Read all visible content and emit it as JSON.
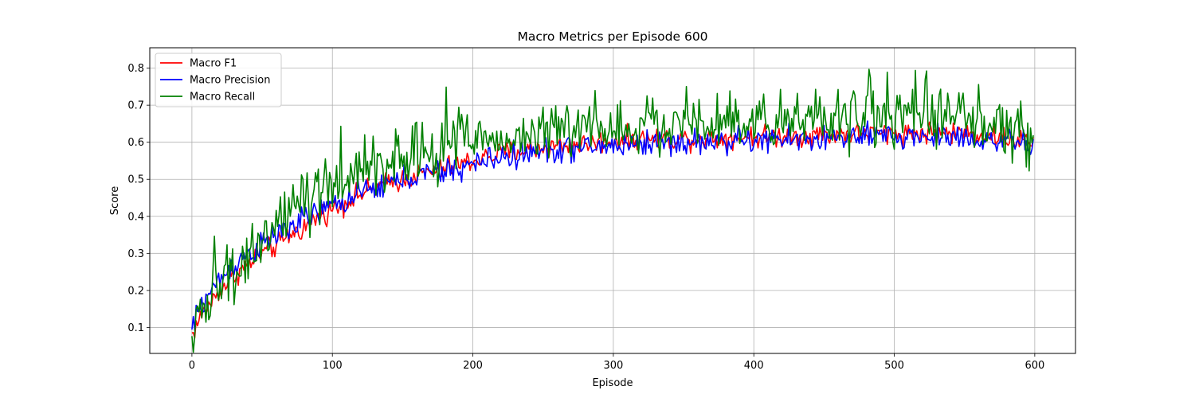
{
  "chart_data": {
    "type": "line",
    "title": "Macro Metrics per Episode 600",
    "xlabel": "Episode",
    "ylabel": "Score",
    "xlim": [
      -30,
      629
    ],
    "ylim": [
      0.03,
      0.855
    ],
    "xticks": [
      0,
      100,
      200,
      300,
      400,
      500,
      600
    ],
    "yticks": [
      0.1,
      0.2,
      0.3,
      0.4,
      0.5,
      0.6,
      0.7,
      0.8
    ],
    "grid": true,
    "legend_position": "upper-left",
    "n_points": 600,
    "series": [
      {
        "name": "Macro F1",
        "color": "#ff0000",
        "anchors_x": [
          0,
          5,
          10,
          20,
          30,
          40,
          50,
          60,
          70,
          80,
          90,
          100,
          120,
          140,
          160,
          180,
          200,
          220,
          240,
          260,
          280,
          300,
          330,
          360,
          400,
          450,
          500,
          550,
          599
        ],
        "anchors_y": [
          0.08,
          0.12,
          0.15,
          0.2,
          0.24,
          0.27,
          0.3,
          0.32,
          0.35,
          0.37,
          0.4,
          0.42,
          0.46,
          0.49,
          0.51,
          0.53,
          0.55,
          0.57,
          0.58,
          0.59,
          0.595,
          0.605,
          0.61,
          0.61,
          0.615,
          0.62,
          0.625,
          0.625,
          0.6
        ],
        "noise": 0.015
      },
      {
        "name": "Macro Precision",
        "color": "#0000ff",
        "anchors_x": [
          0,
          5,
          10,
          20,
          30,
          40,
          50,
          60,
          70,
          80,
          90,
          100,
          120,
          140,
          160,
          180,
          200,
          220,
          240,
          260,
          280,
          300,
          330,
          360,
          400,
          450,
          500,
          550,
          599
        ],
        "anchors_y": [
          0.09,
          0.15,
          0.18,
          0.23,
          0.27,
          0.3,
          0.32,
          0.35,
          0.37,
          0.39,
          0.41,
          0.43,
          0.46,
          0.49,
          0.51,
          0.52,
          0.54,
          0.56,
          0.57,
          0.58,
          0.585,
          0.59,
          0.6,
          0.6,
          0.605,
          0.61,
          0.615,
          0.615,
          0.59
        ],
        "noise": 0.018
      },
      {
        "name": "Macro Recall",
        "color": "#008000",
        "anchors_x": [
          0,
          5,
          10,
          20,
          30,
          40,
          50,
          60,
          70,
          80,
          90,
          100,
          120,
          140,
          160,
          180,
          200,
          220,
          240,
          260,
          280,
          300,
          330,
          360,
          400,
          450,
          500,
          550,
          599
        ],
        "anchors_y": [
          0.07,
          0.13,
          0.16,
          0.21,
          0.26,
          0.3,
          0.33,
          0.37,
          0.4,
          0.43,
          0.45,
          0.48,
          0.52,
          0.55,
          0.57,
          0.59,
          0.6,
          0.61,
          0.62,
          0.63,
          0.64,
          0.645,
          0.65,
          0.655,
          0.66,
          0.665,
          0.67,
          0.67,
          0.61
        ],
        "noise": 0.04
      }
    ]
  }
}
